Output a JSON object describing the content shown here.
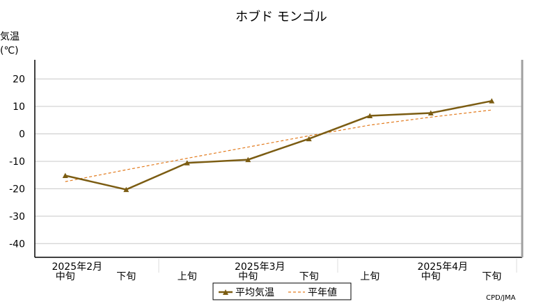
{
  "chart_data": {
    "type": "line",
    "title": "ホブド モンゴル",
    "ylabel_line1": "気温",
    "ylabel_line2": "(℃)",
    "ylim": [
      -45,
      27
    ],
    "yticks": [
      20,
      10,
      0,
      -10,
      -20,
      -30,
      -40
    ],
    "grid": true,
    "x_labels": [
      "中旬",
      "下旬",
      "上旬",
      "中旬",
      "下旬",
      "上旬",
      "中旬",
      "下旬"
    ],
    "month_labels": [
      {
        "label": "2025年2月",
        "index": 0
      },
      {
        "label": "2025年3月",
        "index": 3
      },
      {
        "label": "2025年4月",
        "index": 6
      }
    ],
    "series": [
      {
        "name": "平均気温",
        "style": "solid-triangle",
        "color": "#7b5c12",
        "values": [
          -15.2,
          -20.3,
          -10.6,
          -9.4,
          -1.8,
          6.6,
          7.6,
          12.0
        ]
      },
      {
        "name": "平年値",
        "style": "dashed",
        "color": "#e27a1c",
        "values": [
          -17.4,
          -13.1,
          -8.9,
          -4.8,
          -0.7,
          3.2,
          6.1,
          8.7
        ]
      }
    ],
    "legend_position": "bottom-center",
    "credit": "CPD/JMA"
  }
}
